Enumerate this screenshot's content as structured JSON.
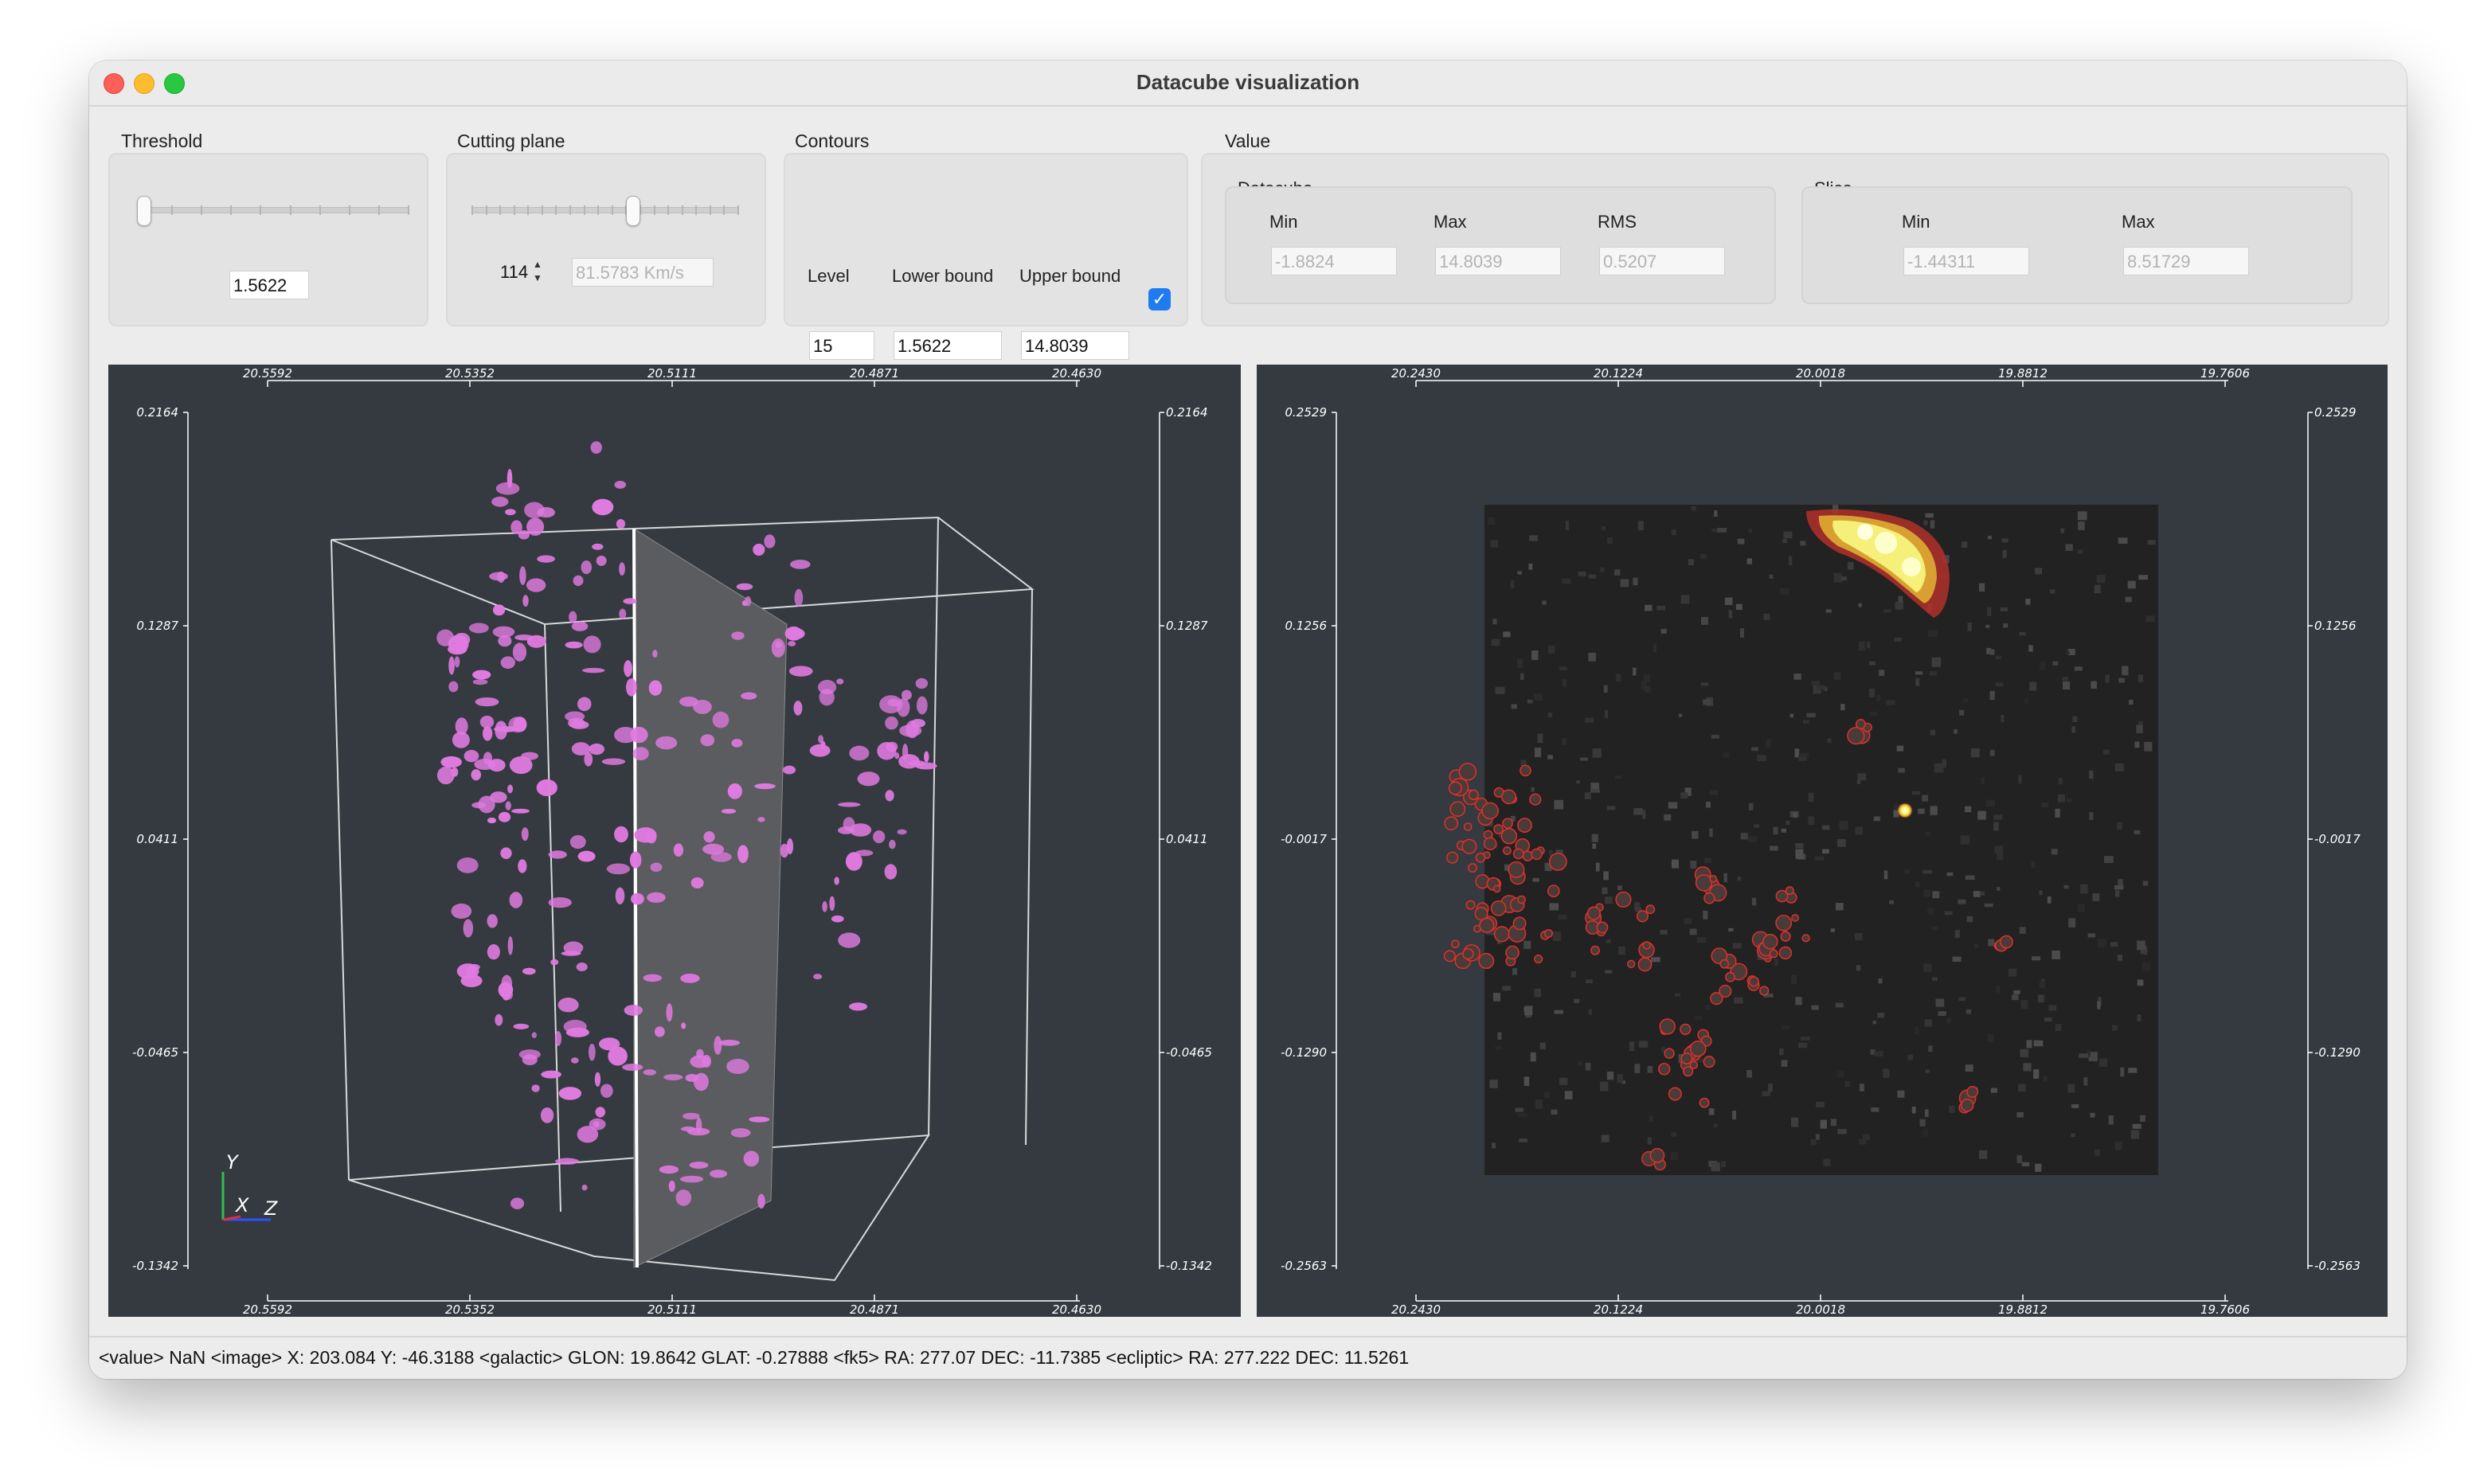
{
  "window": {
    "title": "Datacube visualization"
  },
  "threshold": {
    "label": "Threshold",
    "value": "1.5622"
  },
  "cutting_plane": {
    "label": "Cutting plane",
    "index": "114",
    "velocity": "81.5783 Km/s"
  },
  "contours": {
    "label": "Contours",
    "level_label": "Level",
    "lower_label": "Lower bound",
    "upper_label": "Upper bound",
    "level": "15",
    "lower": "1.5622",
    "upper": "14.8039",
    "enabled": true
  },
  "value": {
    "label": "Value",
    "datacube": {
      "label": "Datacube",
      "min_label": "Min",
      "max_label": "Max",
      "rms_label": "RMS",
      "min": "-1.8824",
      "max": "14.8039",
      "rms": "0.5207"
    },
    "slice": {
      "label": "Slice",
      "min_label": "Min",
      "max_label": "Max",
      "min": "-1.44311",
      "max": "8.51729"
    }
  },
  "view3d": {
    "x_ticks": [
      "20.5592",
      "20.5352",
      "20.5111",
      "20.4871",
      "20.4630"
    ],
    "y_ticks": [
      "0.2164",
      "0.1287",
      "0.0411",
      "-0.0465",
      "-0.1342"
    ],
    "axes": {
      "x": "X",
      "y": "Y",
      "z": "Z"
    },
    "isosurface_color": "#e07ae0"
  },
  "view2d": {
    "x_ticks": [
      "20.2430",
      "20.1224",
      "20.0018",
      "19.8812",
      "19.7606"
    ],
    "y_ticks": [
      "0.2529",
      "0.1256",
      "-0.0017",
      "-0.1290",
      "-0.2563"
    ],
    "contour_color": "#e0302a",
    "hotspot_color": "#ffff66"
  },
  "status": {
    "text": "<value> NaN <image> X: 203.084 Y: -46.3188 <galactic> GLON: 19.8642 GLAT: -0.27888 <fk5> RA: 277.07 DEC: -11.7385 <ecliptic> RA: 277.222 DEC: 11.5261"
  }
}
